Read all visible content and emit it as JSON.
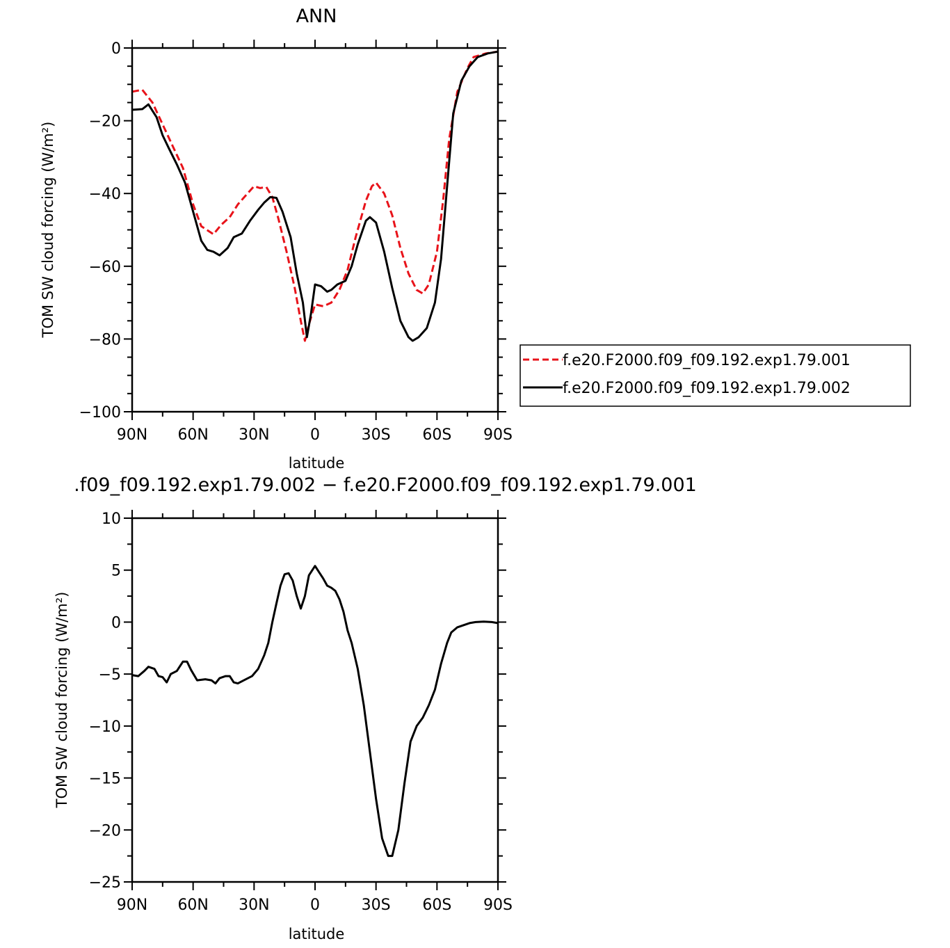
{
  "chart_data": [
    {
      "type": "line",
      "title": "ANN",
      "xlabel": "latitude",
      "ylabel": "TOM SW cloud forcing (W/m²)",
      "xlim": [
        -90,
        90
      ],
      "ylim": [
        -100,
        0
      ],
      "x_tick_labels": [
        "90N",
        "60N",
        "30N",
        "0",
        "30S",
        "60S",
        "90S"
      ],
      "y_tick_labels": [
        "0",
        "−20",
        "−40",
        "−60",
        "−80",
        "−100"
      ],
      "legend_position": "right",
      "series": [
        {
          "name": "f.e20.F2000.f09_f09.192.exp1.79.001",
          "color": "#e8131a",
          "style": "dashed",
          "points": [
            [
              -90,
              -12
            ],
            [
              -85,
              -11.5
            ],
            [
              -80,
              -15
            ],
            [
              -75,
              -21
            ],
            [
              -70,
              -27
            ],
            [
              -65,
              -33
            ],
            [
              -60,
              -43
            ],
            [
              -56,
              -49
            ],
            [
              -50,
              -51.2
            ],
            [
              -46,
              -48.5
            ],
            [
              -42,
              -46.5
            ],
            [
              -38,
              -43
            ],
            [
              -34,
              -40.5
            ],
            [
              -30,
              -38
            ],
            [
              -27,
              -38.5
            ],
            [
              -24,
              -38.2
            ],
            [
              -21,
              -41
            ],
            [
              -18,
              -47
            ],
            [
              -14,
              -56
            ],
            [
              -10,
              -66
            ],
            [
              -7,
              -75
            ],
            [
              -5,
              -80.5
            ],
            [
              -3,
              -76
            ],
            [
              0,
              -70.5
            ],
            [
              4,
              -71
            ],
            [
              8,
              -70
            ],
            [
              12,
              -66.5
            ],
            [
              16,
              -61
            ],
            [
              20,
              -52
            ],
            [
              25,
              -42
            ],
            [
              28,
              -38
            ],
            [
              30,
              -37
            ],
            [
              34,
              -40
            ],
            [
              38,
              -46
            ],
            [
              42,
              -55
            ],
            [
              46,
              -62
            ],
            [
              50,
              -66.5
            ],
            [
              53,
              -67.5
            ],
            [
              56,
              -65
            ],
            [
              60,
              -56
            ],
            [
              63,
              -42
            ],
            [
              66,
              -25
            ],
            [
              70,
              -12
            ],
            [
              75,
              -5.5
            ],
            [
              78,
              -2.5
            ],
            [
              84,
              -1.5
            ],
            [
              90,
              -1
            ]
          ]
        },
        {
          "name": "f.e20.F2000.f09_f09.192.exp1.79.002",
          "color": "#000000",
          "style": "solid",
          "points": [
            [
              -90,
              -17
            ],
            [
              -85,
              -16.8
            ],
            [
              -82,
              -15.5
            ],
            [
              -78,
              -19
            ],
            [
              -75,
              -24
            ],
            [
              -72,
              -27.5
            ],
            [
              -68,
              -32
            ],
            [
              -64,
              -37
            ],
            [
              -60,
              -45
            ],
            [
              -56,
              -53
            ],
            [
              -53,
              -55.5
            ],
            [
              -50,
              -56
            ],
            [
              -47,
              -57
            ],
            [
              -43,
              -55
            ],
            [
              -40,
              -52
            ],
            [
              -36,
              -51
            ],
            [
              -32,
              -47.5
            ],
            [
              -28,
              -44.5
            ],
            [
              -25,
              -42.5
            ],
            [
              -22,
              -41
            ],
            [
              -19,
              -41.2
            ],
            [
              -16,
              -45
            ],
            [
              -12,
              -52
            ],
            [
              -9,
              -62
            ],
            [
              -6,
              -70
            ],
            [
              -4,
              -79.5
            ],
            [
              -2,
              -73
            ],
            [
              0,
              -65
            ],
            [
              3,
              -65.5
            ],
            [
              6,
              -67
            ],
            [
              8,
              -66.5
            ],
            [
              11,
              -65
            ],
            [
              15,
              -64
            ],
            [
              18,
              -60
            ],
            [
              21,
              -54
            ],
            [
              25,
              -47.5
            ],
            [
              27,
              -46.5
            ],
            [
              30,
              -48
            ],
            [
              34,
              -56
            ],
            [
              38,
              -66
            ],
            [
              42,
              -75
            ],
            [
              46,
              -79.5
            ],
            [
              48,
              -80.5
            ],
            [
              51,
              -79.5
            ],
            [
              55,
              -77
            ],
            [
              59,
              -70
            ],
            [
              62,
              -58
            ],
            [
              65,
              -38
            ],
            [
              68,
              -18
            ],
            [
              72,
              -9
            ],
            [
              76,
              -5
            ],
            [
              80,
              -2.5
            ],
            [
              85,
              -1.5
            ],
            [
              90,
              -1
            ]
          ]
        }
      ]
    },
    {
      "type": "line",
      "title": ".f09_f09.192.exp1.79.002 − f.e20.F2000.f09_f09.192.exp1.79.001",
      "xlabel": "latitude",
      "ylabel": "TOM SW cloud forcing (W/m²)",
      "xlim": [
        -90,
        90
      ],
      "ylim": [
        -25,
        10
      ],
      "x_tick_labels": [
        "90N",
        "60N",
        "30N",
        "0",
        "30S",
        "60S",
        "90S"
      ],
      "y_tick_labels": [
        "10",
        "5",
        "0",
        "−5",
        "−10",
        "−15",
        "−20",
        "−25"
      ],
      "series": [
        {
          "color": "#000000",
          "style": "solid",
          "points": [
            [
              -90,
              -5.1
            ],
            [
              -87,
              -5.2
            ],
            [
              -84,
              -4.7
            ],
            [
              -82,
              -4.3
            ],
            [
              -79,
              -4.5
            ],
            [
              -77,
              -5.2
            ],
            [
              -75,
              -5.3
            ],
            [
              -73,
              -5.8
            ],
            [
              -71,
              -5
            ],
            [
              -68,
              -4.7
            ],
            [
              -65,
              -3.8
            ],
            [
              -63,
              -3.8
            ],
            [
              -61,
              -4.6
            ],
            [
              -58,
              -5.6
            ],
            [
              -54,
              -5.5
            ],
            [
              -51,
              -5.6
            ],
            [
              -49,
              -5.9
            ],
            [
              -47,
              -5.4
            ],
            [
              -44,
              -5.2
            ],
            [
              -42,
              -5.2
            ],
            [
              -40,
              -5.8
            ],
            [
              -38,
              -5.9
            ],
            [
              -35,
              -5.6
            ],
            [
              -31,
              -5.2
            ],
            [
              -28,
              -4.5
            ],
            [
              -25,
              -3.2
            ],
            [
              -23,
              -2
            ],
            [
              -21,
              0
            ],
            [
              -19,
              1.8
            ],
            [
              -17,
              3.5
            ],
            [
              -15,
              4.6
            ],
            [
              -13,
              4.7
            ],
            [
              -11,
              4
            ],
            [
              -9,
              2.5
            ],
            [
              -7,
              1.3
            ],
            [
              -5,
              2.5
            ],
            [
              -3,
              4.5
            ],
            [
              0,
              5.4
            ],
            [
              2,
              4.8
            ],
            [
              4,
              4.2
            ],
            [
              6,
              3.5
            ],
            [
              8,
              3.3
            ],
            [
              10,
              3
            ],
            [
              12,
              2.2
            ],
            [
              14,
              1
            ],
            [
              16,
              -0.8
            ],
            [
              18,
              -2
            ],
            [
              21,
              -4.5
            ],
            [
              24,
              -8
            ],
            [
              27,
              -12.5
            ],
            [
              30,
              -17
            ],
            [
              33,
              -20.8
            ],
            [
              36,
              -22.5
            ],
            [
              38,
              -22.5
            ],
            [
              41,
              -20
            ],
            [
              44,
              -15.5
            ],
            [
              47,
              -11.5
            ],
            [
              50,
              -10
            ],
            [
              53,
              -9.2
            ],
            [
              56,
              -8
            ],
            [
              59,
              -6.5
            ],
            [
              62,
              -4
            ],
            [
              65,
              -2
            ],
            [
              67,
              -1
            ],
            [
              70,
              -0.5
            ],
            [
              73,
              -0.3
            ],
            [
              76,
              -0.1
            ],
            [
              79,
              0
            ],
            [
              83,
              0.05
            ],
            [
              87,
              0
            ],
            [
              90,
              -0.1
            ]
          ]
        }
      ]
    }
  ]
}
